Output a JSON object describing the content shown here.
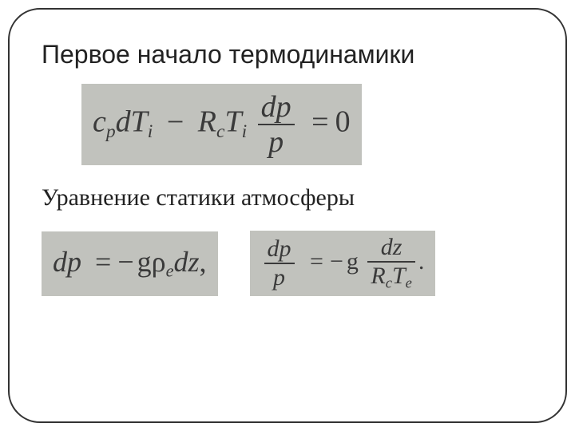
{
  "slide": {
    "heading": "Первое начало термодинамики",
    "subheading": "Уравнение статики атмосферы"
  },
  "style": {
    "frame_border_color": "#333333",
    "frame_border_width": 2,
    "frame_border_radius": 40,
    "background_color": "#ffffff",
    "eq_bg_color": "#c1c2bd",
    "eq_text_color": "#3a3a3a",
    "heading_fontsize": 32,
    "heading_fontfamily": "Arial, sans-serif",
    "subheading_fontsize": 30,
    "subheading_fontfamily": "Times New Roman, serif",
    "eq_fontfamily": "Times New Roman, serif"
  },
  "equations": {
    "eq1": {
      "fontsize": 38,
      "term1_coef": "c",
      "term1_sub": "p",
      "term1_diff": "dT",
      "term1_diff_sub": "i",
      "minus": "−",
      "term2_coef": "R",
      "term2_sub": "c",
      "term2_var": "T",
      "term2_var_sub": "i",
      "frac_num": "dp",
      "frac_den": "p",
      "eq": "=",
      "rhs": "0"
    },
    "eq2": {
      "fontsize": 36,
      "lhs": "dp",
      "eq": "=",
      "minus": "−",
      "g": "g",
      "rho": "ρ",
      "rho_sub": "e",
      "dz": "dz",
      "trail": ","
    },
    "eq3": {
      "fontsize": 30,
      "lhs_num": "dp",
      "lhs_den": "p",
      "eq": "=",
      "minus": "−",
      "g": "g",
      "rhs_num": "dz",
      "rhs_den_R": "R",
      "rhs_den_R_sub": "c",
      "rhs_den_T": "T",
      "rhs_den_T_sub": "e",
      "trail": "."
    }
  }
}
